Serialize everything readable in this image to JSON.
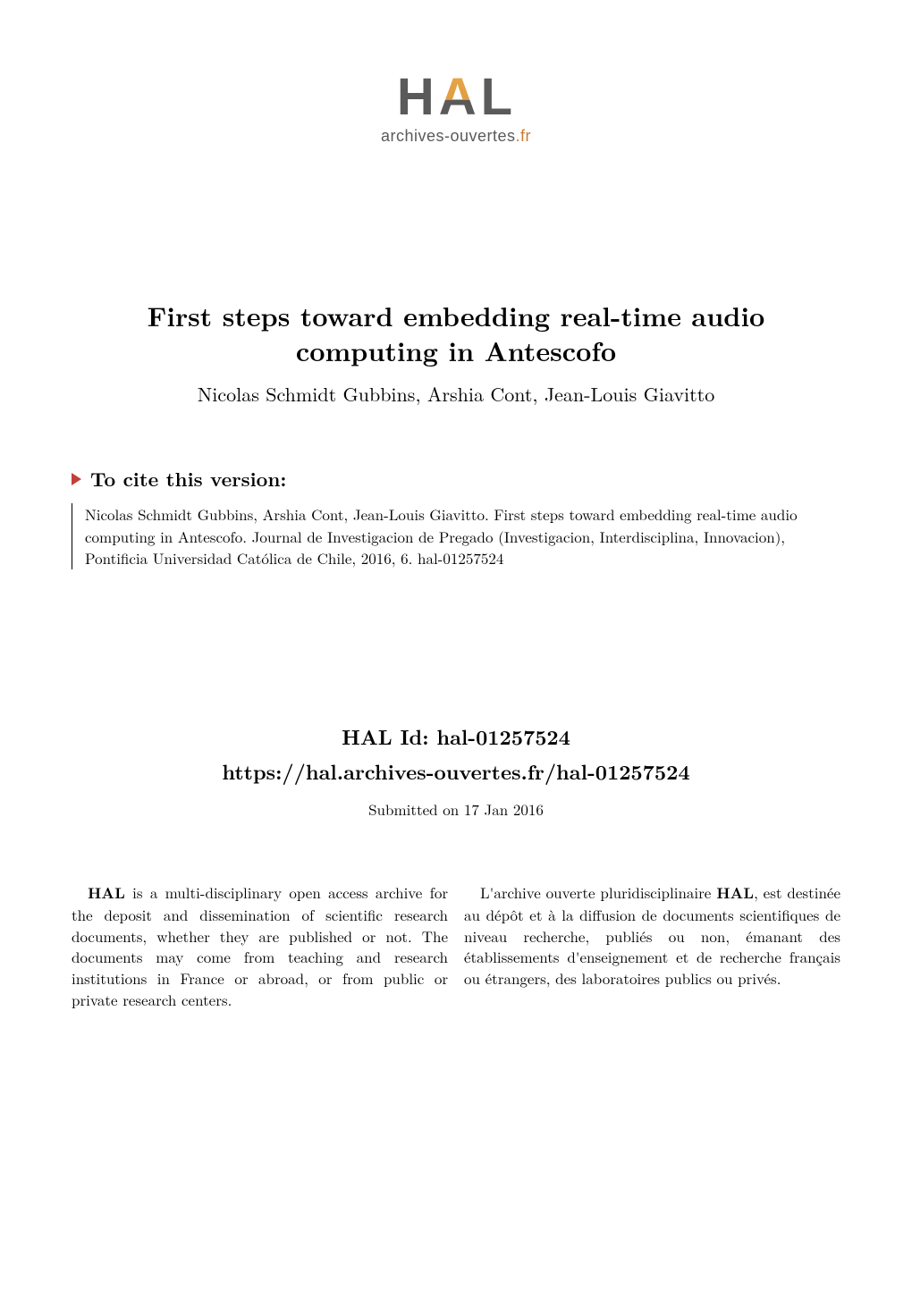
{
  "logo": {
    "text": "HAL",
    "subtitle_prefix": "archives-ouvertes",
    "subtitle_suffix": ".fr"
  },
  "title": "First steps toward embedding real-time audio computing in Antescofo",
  "authors": "Nicolas Schmidt Gubbins, Arshia Cont, Jean-Louis Giavitto",
  "cite": {
    "heading": "To cite this version:",
    "text": "Nicolas Schmidt Gubbins, Arshia Cont, Jean-Louis Giavitto. First steps toward embedding real-time audio computing in Antescofo. Journal de Investigacion de Pregado (Investigacion, Interdisciplina, Innovacion), Pontificia Universidad Católica de Chile, 2016, 6.  hal-01257524"
  },
  "hal": {
    "id_label": "HAL Id: hal-01257524",
    "url": "https://hal.archives-ouvertes.fr/hal-01257524",
    "submitted": "Submitted on 17 Jan 2016"
  },
  "desc_en": {
    "bold": "HAL",
    "rest": " is a multi-disciplinary open access archive for the deposit and dissemination of scientific research documents, whether they are published or not. The documents may come from teaching and research institutions in France or abroad, or from public or private research centers."
  },
  "desc_fr": {
    "prefix": "L'archive ouverte pluridisciplinaire ",
    "bold": "HAL",
    "rest": ", est destinée au dépôt et à la diffusion de documents scientifiques de niveau recherche, publiés ou non, émanant des établissements d'enseignement et de recherche français ou étrangers, des laboratoires publics ou privés."
  },
  "colors": {
    "accent_red": "#c2403a",
    "logo_gray": "#5a5a5a",
    "logo_orange": "#cc7a2e",
    "background": "#ffffff",
    "text": "#000000"
  },
  "fonts": {
    "body_family": "Latin Modern Roman / Computer Modern serif",
    "title_size_pt": 22,
    "authors_size_pt": 16,
    "body_size_pt": 12
  }
}
